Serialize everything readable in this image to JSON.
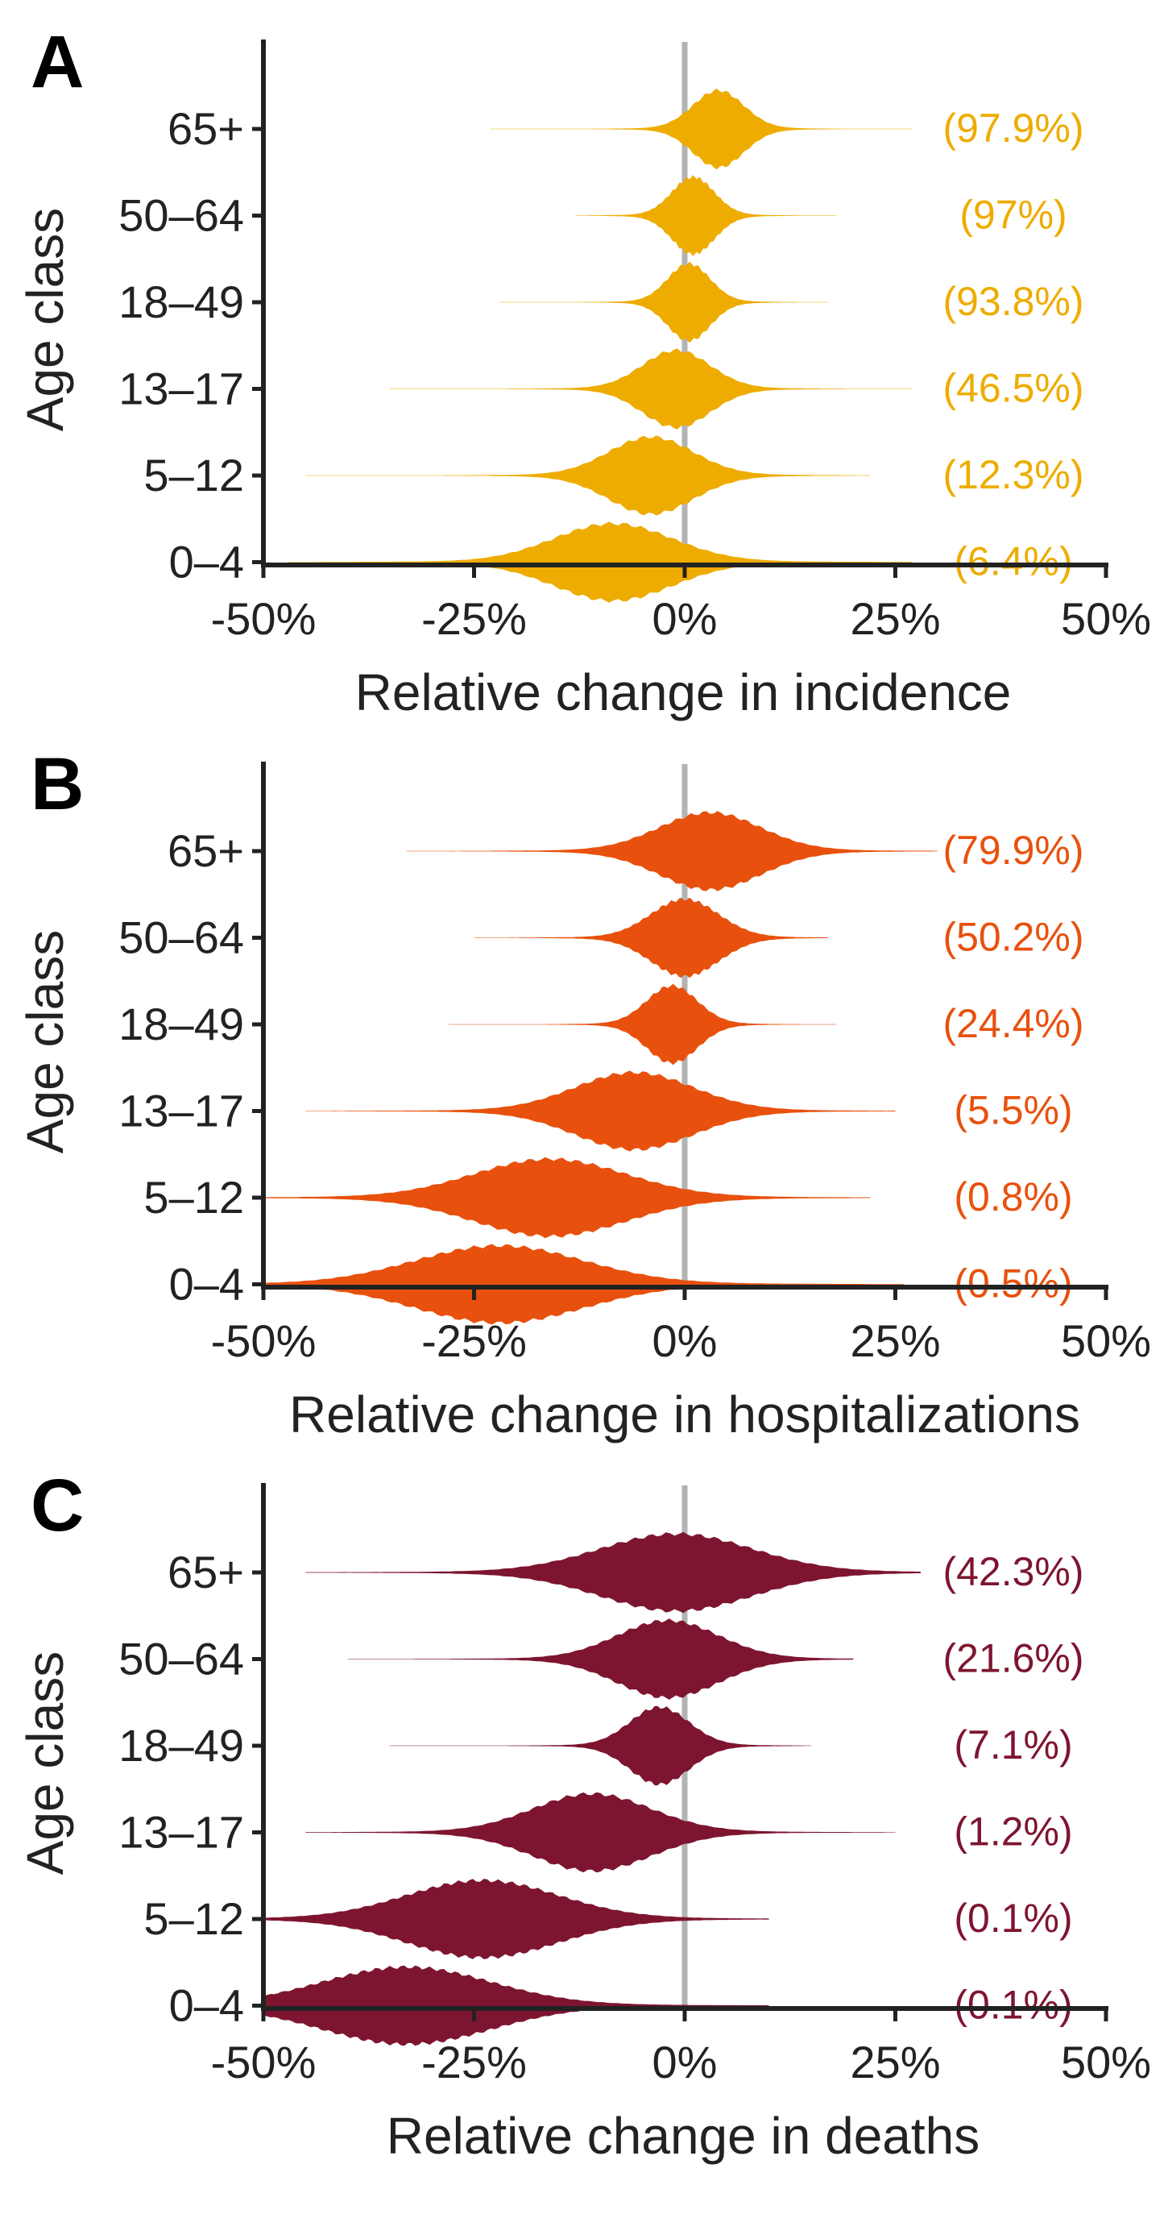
{
  "axis_ticks": [
    "-50%",
    "-25%",
    "0%",
    "25%",
    "50%"
  ],
  "chart_data": [
    {
      "type": "violin",
      "panel_label": "A",
      "color": "#EEAC00",
      "xlabel": "Relative change in incidence",
      "ylabel": "Age class",
      "xlim": [
        -50,
        50
      ],
      "x_ticks": [
        -50,
        -25,
        0,
        25,
        50
      ],
      "reference_line": 0,
      "categories": [
        "65+",
        "50–64",
        "18–49",
        "13–17",
        "5–12",
        "0–4"
      ],
      "series": [
        {
          "category": "65+",
          "annotation": "(97.9%)",
          "center": 4,
          "spread": 3,
          "min": -23,
          "max": 27
        },
        {
          "category": "50–64",
          "annotation": "(97%)",
          "center": 1,
          "spread": 2.5,
          "min": -13,
          "max": 18
        },
        {
          "category": "18–49",
          "annotation": "(93.8%)",
          "center": 0.5,
          "spread": 2.5,
          "min": -22,
          "max": 17
        },
        {
          "category": "13–17",
          "annotation": "(46.5%)",
          "center": -1,
          "spread": 4,
          "min": -35,
          "max": 27
        },
        {
          "category": "5–12",
          "annotation": "(12.3%)",
          "center": -4,
          "spread": 5,
          "min": -45,
          "max": 22
        },
        {
          "category": "0–4",
          "annotation": "(6.4%)",
          "center": -8.5,
          "spread": 7,
          "min": -47,
          "max": 27
        }
      ]
    },
    {
      "type": "violin",
      "panel_label": "B",
      "color": "#E8510D",
      "xlabel": "Relative change in hospitalizations",
      "ylabel": "Age class",
      "xlim": [
        -50,
        50
      ],
      "x_ticks": [
        -50,
        -25,
        0,
        25,
        50
      ],
      "reference_line": 0,
      "categories": [
        "65+",
        "50–64",
        "18–49",
        "13–17",
        "5–12",
        "0–4"
      ],
      "series": [
        {
          "category": "65+",
          "annotation": "(79.9%)",
          "center": 3,
          "spread": 6,
          "min": -33,
          "max": 30
        },
        {
          "category": "50–64",
          "annotation": "(50.2%)",
          "center": 0,
          "spread": 4,
          "min": -25,
          "max": 17
        },
        {
          "category": "18–49",
          "annotation": "(24.4%)",
          "center": -1.5,
          "spread": 3,
          "min": -28,
          "max": 18
        },
        {
          "category": "13–17",
          "annotation": "(5.5%)",
          "center": -6,
          "spread": 7,
          "min": -45,
          "max": 25
        },
        {
          "category": "5–12",
          "annotation": "(0.8%)",
          "center": -16,
          "spread": 9,
          "min": -50,
          "max": 22
        },
        {
          "category": "0–4",
          "annotation": "(0.5%)",
          "center": -22,
          "spread": 10,
          "min": -50,
          "max": 26
        }
      ]
    },
    {
      "type": "violin",
      "panel_label": "C",
      "color": "#7E1530",
      "xlabel": "Relative change in deaths",
      "ylabel": "Age class",
      "xlim": [
        -50,
        50
      ],
      "x_ticks": [
        -50,
        -25,
        0,
        25,
        50
      ],
      "reference_line": 0,
      "categories": [
        "65+",
        "50–64",
        "18–49",
        "13–17",
        "5–12",
        "0–4"
      ],
      "series": [
        {
          "category": "65+",
          "annotation": "(42.3%)",
          "center": -1,
          "spread": 9,
          "min": -45,
          "max": 28
        },
        {
          "category": "50–64",
          "annotation": "(21.6%)",
          "center": -2,
          "spread": 6,
          "min": -40,
          "max": 20
        },
        {
          "category": "18–49",
          "annotation": "(7.1%)",
          "center": -3,
          "spread": 3.5,
          "min": -35,
          "max": 15
        },
        {
          "category": "13–17",
          "annotation": "(1.2%)",
          "center": -11,
          "spread": 7,
          "min": -45,
          "max": 25
        },
        {
          "category": "5–12",
          "annotation": "(0.1%)",
          "center": -24,
          "spread": 9,
          "min": -50,
          "max": 10
        },
        {
          "category": "0–4",
          "annotation": "(0.1%)",
          "center": -33,
          "spread": 10,
          "min": -50,
          "max": 10
        }
      ]
    }
  ]
}
